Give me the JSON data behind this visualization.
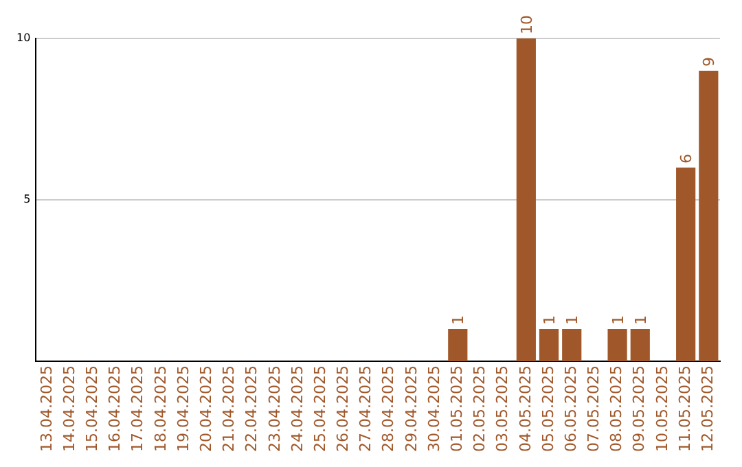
{
  "chart_data": {
    "type": "bar",
    "categories": [
      "13.04.2025",
      "14.04.2025",
      "15.04.2025",
      "16.04.2025",
      "17.04.2025",
      "18.04.2025",
      "19.04.2025",
      "20.04.2025",
      "21.04.2025",
      "22.04.2025",
      "23.04.2025",
      "24.04.2025",
      "25.04.2025",
      "26.04.2025",
      "27.04.2025",
      "28.04.2025",
      "29.04.2025",
      "30.04.2025",
      "01.05.2025",
      "02.05.2025",
      "03.05.2025",
      "04.05.2025",
      "05.05.2025",
      "06.05.2025",
      "07.05.2025",
      "08.05.2025",
      "09.05.2025",
      "10.05.2025",
      "11.05.2025",
      "12.05.2025"
    ],
    "values": [
      0,
      0,
      0,
      0,
      0,
      0,
      0,
      0,
      0,
      0,
      0,
      0,
      0,
      0,
      0,
      0,
      0,
      0,
      1,
      0,
      0,
      10,
      1,
      1,
      0,
      1,
      1,
      0,
      6,
      9
    ],
    "value_labels": [
      null,
      null,
      null,
      null,
      null,
      null,
      null,
      null,
      null,
      null,
      null,
      null,
      null,
      null,
      null,
      null,
      null,
      null,
      "1",
      null,
      null,
      "10",
      "1",
      "1",
      null,
      "1",
      "1",
      null,
      "6",
      "9"
    ],
    "color": "#a0582a",
    "ylim": [
      0,
      10
    ],
    "yticks": [
      5,
      10
    ],
    "grid": "y"
  }
}
